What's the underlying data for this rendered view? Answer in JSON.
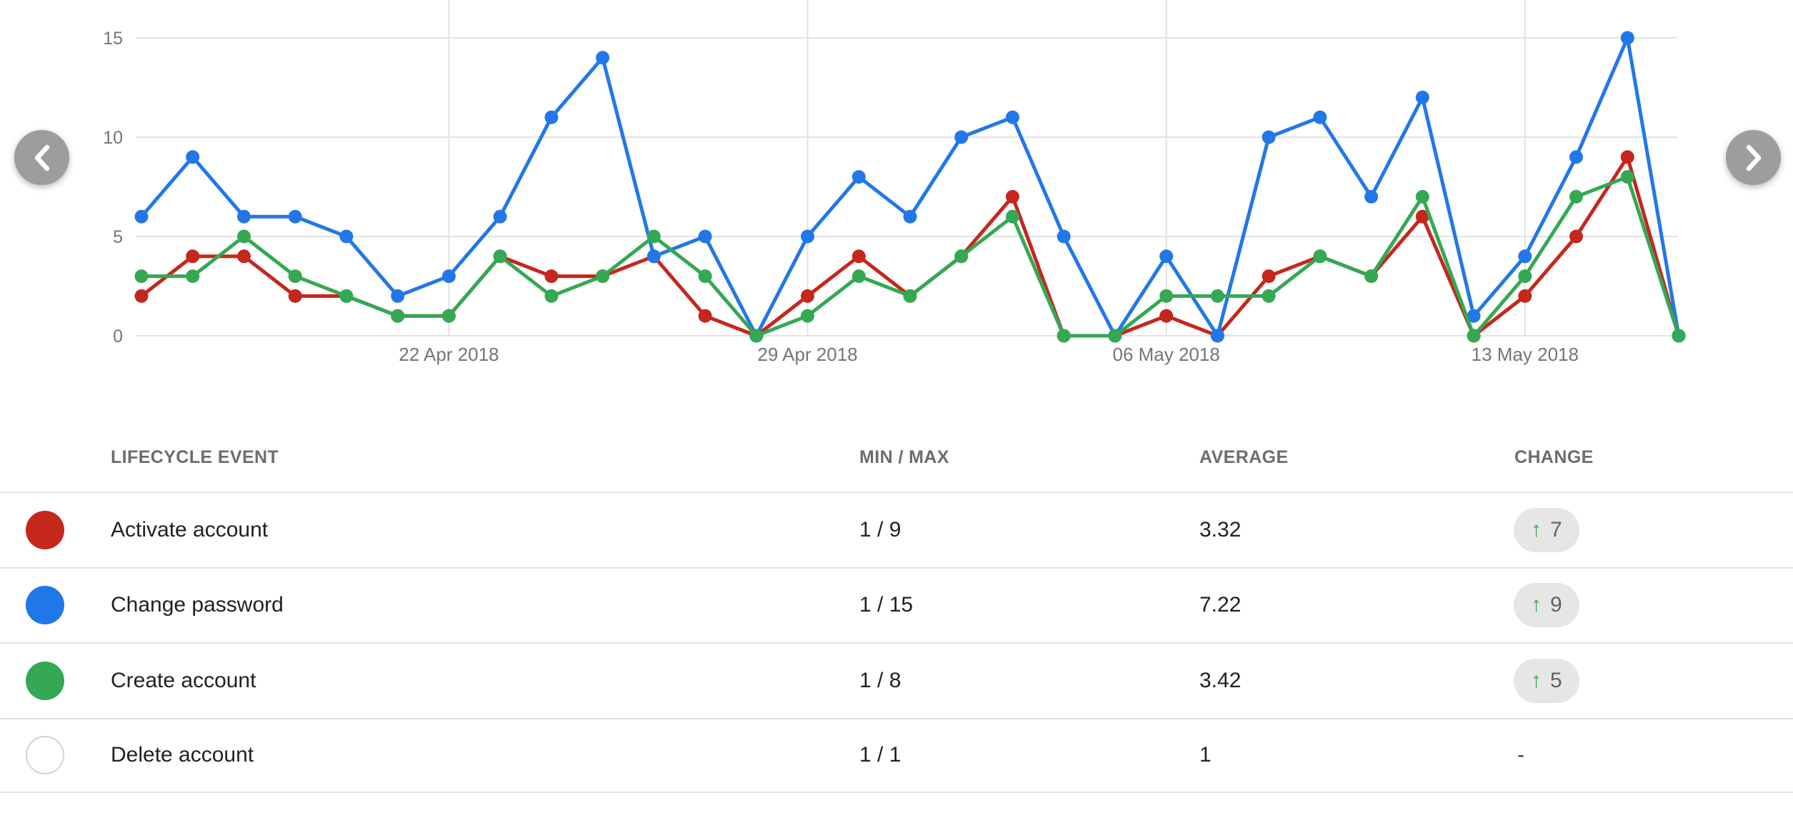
{
  "chart_data": {
    "type": "line",
    "title": "",
    "xlabel": "",
    "ylabel": "",
    "ylim": [
      0,
      15
    ],
    "grid": true,
    "legend_position": "table-below-chart",
    "y_ticks": [
      15,
      10,
      5,
      0
    ],
    "x_tick_labels": [
      "22 Apr 2018",
      "29 Apr 2018",
      "06 May 2018",
      "13 May 2018"
    ],
    "x_tick_indices": [
      6,
      13,
      20,
      27
    ],
    "x": [
      "16 Apr 2018",
      "17 Apr 2018",
      "18 Apr 2018",
      "19 Apr 2018",
      "20 Apr 2018",
      "21 Apr 2018",
      "22 Apr 2018",
      "23 Apr 2018",
      "24 Apr 2018",
      "25 Apr 2018",
      "26 Apr 2018",
      "27 Apr 2018",
      "28 Apr 2018",
      "29 Apr 2018",
      "30 Apr 2018",
      "01 May 2018",
      "02 May 2018",
      "03 May 2018",
      "04 May 2018",
      "05 May 2018",
      "06 May 2018",
      "07 May 2018",
      "08 May 2018",
      "09 May 2018",
      "10 May 2018",
      "11 May 2018",
      "12 May 2018",
      "13 May 2018",
      "14 May 2018",
      "15 May 2018",
      "16 May 2018"
    ],
    "series": [
      {
        "name": "Activate account",
        "color": "#c5271d",
        "values": [
          2,
          4,
          4,
          2,
          2,
          1,
          1,
          4,
          3,
          3,
          4,
          1,
          0,
          2,
          4,
          2,
          4,
          7,
          0,
          0,
          1,
          0,
          3,
          4,
          3,
          6,
          0,
          2,
          5,
          9,
          0
        ]
      },
      {
        "name": "Change password",
        "color": "#2277e8",
        "values": [
          6,
          9,
          6,
          6,
          5,
          2,
          3,
          6,
          11,
          14,
          4,
          5,
          0,
          5,
          8,
          6,
          10,
          11,
          5,
          0,
          4,
          0,
          10,
          11,
          7,
          12,
          1,
          4,
          9,
          15,
          0
        ]
      },
      {
        "name": "Create account",
        "color": "#34a853",
        "values": [
          3,
          3,
          5,
          3,
          2,
          1,
          1,
          4,
          2,
          3,
          5,
          3,
          0,
          1,
          3,
          2,
          4,
          6,
          0,
          0,
          2,
          2,
          2,
          4,
          3,
          7,
          0,
          3,
          7,
          8,
          0
        ]
      }
    ]
  },
  "nav": {
    "prev_icon": "chevron-left",
    "next_icon": "chevron-right"
  },
  "table": {
    "columns": [
      "LIFECYCLE EVENT",
      "MIN / MAX",
      "AVERAGE",
      "CHANGE"
    ],
    "up_arrow_glyph": "↑",
    "rows": [
      {
        "label": "Activate account",
        "color": "#c5271d",
        "min_max": "1 / 9",
        "average": "3.32",
        "change": "7",
        "trend": "up"
      },
      {
        "label": "Change password",
        "color": "#2277e8",
        "min_max": "1 / 15",
        "average": "7.22",
        "change": "9",
        "trend": "up"
      },
      {
        "label": "Create account",
        "color": "#34a853",
        "min_max": "1 / 8",
        "average": "3.42",
        "change": "5",
        "trend": "up"
      },
      {
        "label": "Delete account",
        "color": "#ffffff",
        "min_max": "1 / 1",
        "average": "1",
        "change": "-",
        "trend": "none"
      }
    ]
  }
}
